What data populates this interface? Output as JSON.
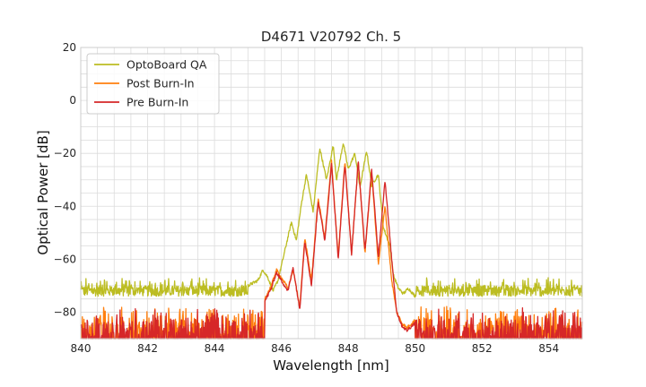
{
  "chart_data": {
    "type": "line",
    "title": "D4671 V20792 Ch. 5",
    "xlabel": "Wavelength [nm]",
    "ylabel": "Optical Power [dB]",
    "xlim": [
      840,
      855
    ],
    "ylim": [
      -90,
      20
    ],
    "xticks": [
      840,
      842,
      844,
      846,
      848,
      850,
      852,
      854
    ],
    "xtick_labels": [
      "840",
      "842",
      "844",
      "846",
      "848",
      "850",
      "852",
      "854"
    ],
    "yticks": [
      -80,
      -60,
      -40,
      -20,
      0,
      20
    ],
    "ytick_labels": [
      "−80",
      "−60",
      "−40",
      "−20",
      "0",
      "20"
    ],
    "grid": true,
    "legend_position": "top-left",
    "series": [
      {
        "name": "OptoBoard QA",
        "color": "#bcbd22",
        "noise_floor": -72,
        "x": [
          845.0,
          845.3,
          845.45,
          845.6,
          845.75,
          845.9,
          846.1,
          846.3,
          846.45,
          846.6,
          846.75,
          846.95,
          847.15,
          847.35,
          847.55,
          847.65,
          847.85,
          848.0,
          848.2,
          848.35,
          848.55,
          848.7,
          848.9,
          849.05,
          849.25,
          849.35,
          849.5,
          849.65,
          849.8,
          850.0
        ],
        "y": [
          -70,
          -68,
          -64,
          -67,
          -72,
          -68,
          -57,
          -46,
          -53,
          -39,
          -28,
          -42,
          -18,
          -30,
          -17,
          -30,
          -16,
          -26,
          -20,
          -33,
          -19,
          -32,
          -28,
          -48,
          -55,
          -66,
          -71,
          -73,
          -71,
          -74
        ]
      },
      {
        "name": "Post Burn-In",
        "color": "#ff7f0e",
        "noise_floor": -82,
        "x": [
          845.5,
          845.7,
          845.85,
          846.0,
          846.2,
          846.35,
          846.55,
          846.7,
          846.9,
          847.1,
          847.3,
          847.5,
          847.7,
          847.9,
          848.1,
          848.3,
          848.5,
          848.7,
          848.9,
          849.1,
          849.3,
          849.45,
          849.6,
          849.75,
          850.0
        ],
        "y": [
          -75,
          -70,
          -64,
          -67,
          -71,
          -64,
          -78,
          -52,
          -68,
          -37,
          -52,
          -23,
          -59,
          -23,
          -58,
          -23,
          -58,
          -27,
          -62,
          -40,
          -68,
          -80,
          -84,
          -86,
          -83
        ]
      },
      {
        "name": "Pre Burn-In",
        "color": "#d62728",
        "noise_floor": -83,
        "x": [
          845.5,
          845.7,
          845.85,
          846.0,
          846.2,
          846.35,
          846.55,
          846.7,
          846.9,
          847.1,
          847.3,
          847.5,
          847.7,
          847.9,
          848.1,
          848.3,
          848.5,
          848.7,
          848.9,
          849.1,
          849.3,
          849.45,
          849.6,
          849.75,
          850.0
        ],
        "y": [
          -76,
          -71,
          -65,
          -68,
          -72,
          -63,
          -79,
          -53,
          -70,
          -38,
          -53,
          -24,
          -60,
          -24,
          -58,
          -23,
          -57,
          -26,
          -59,
          -30,
          -60,
          -80,
          -85,
          -87,
          -84
        ]
      }
    ]
  }
}
